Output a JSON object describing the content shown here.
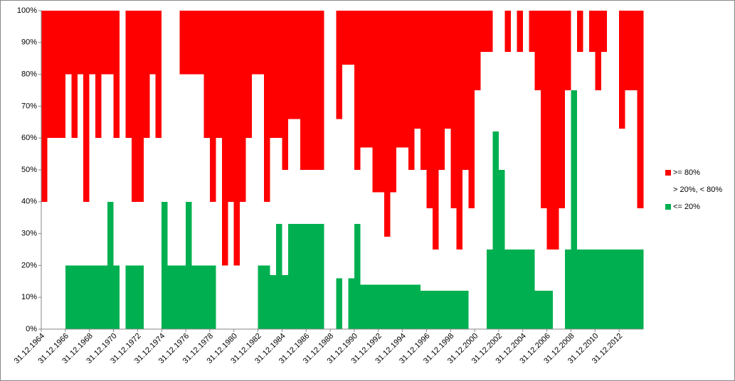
{
  "chart_data": {
    "type": "stacked_area_step",
    "x": [
      1964.0,
      1964.5,
      1965.0,
      1965.5,
      1966.0,
      1966.5,
      1967.0,
      1967.5,
      1968.0,
      1968.5,
      1969.0,
      1969.5,
      1970.0,
      1970.5,
      1971.0,
      1971.5,
      1972.0,
      1972.5,
      1973.0,
      1973.5,
      1974.0,
      1974.5,
      1975.0,
      1975.5,
      1976.0,
      1976.5,
      1977.0,
      1977.5,
      1978.0,
      1978.5,
      1979.0,
      1979.5,
      1980.0,
      1980.5,
      1981.0,
      1981.5,
      1982.0,
      1982.5,
      1983.0,
      1983.5,
      1984.0,
      1984.5,
      1985.0,
      1985.5,
      1986.0,
      1986.5,
      1987.0,
      1987.5,
      1988.0,
      1988.5,
      1989.0,
      1989.5,
      1990.0,
      1990.5,
      1991.0,
      1991.5,
      1992.0,
      1992.5,
      1993.0,
      1993.5,
      1994.0,
      1994.5,
      1995.0,
      1995.5,
      1996.0,
      1996.5,
      1997.0,
      1997.5,
      1998.0,
      1998.5,
      1999.0,
      1999.5,
      2000.0,
      2000.5,
      2001.0,
      2001.5,
      2002.0,
      2002.5,
      2003.0,
      2003.5,
      2004.0,
      2004.5,
      2005.0,
      2005.5,
      2006.0,
      2006.5,
      2007.0,
      2007.5,
      2008.0,
      2008.5,
      2009.0,
      2009.5,
      2010.0,
      2010.5,
      2011.0,
      2011.5,
      2012.0,
      2012.5,
      2013.0,
      2013.5
    ],
    "series": [
      {
        "name": ">= 80%",
        "color": "#ff0000",
        "values": [
          60,
          40,
          40,
          40,
          20,
          40,
          20,
          60,
          20,
          40,
          20,
          20,
          40,
          0,
          40,
          60,
          60,
          40,
          20,
          40,
          0,
          0,
          0,
          20,
          20,
          20,
          20,
          40,
          60,
          40,
          80,
          60,
          80,
          60,
          40,
          20,
          20,
          60,
          40,
          40,
          50,
          34,
          34,
          50,
          50,
          50,
          50,
          0,
          0,
          34,
          17,
          17,
          50,
          43,
          43,
          57,
          57,
          71,
          57,
          43,
          43,
          50,
          37,
          50,
          62,
          75,
          50,
          37,
          62,
          75,
          50,
          62,
          25,
          13,
          13,
          0,
          0,
          13,
          0,
          13,
          0,
          13,
          25,
          62,
          75,
          75,
          62,
          25,
          0,
          13,
          0,
          13,
          25,
          13,
          0,
          0,
          37,
          25,
          25,
          62
        ]
      },
      {
        "name": " > 20%, < 80%",
        "color": "#ffffff",
        "values": [
          40,
          60,
          60,
          60,
          60,
          40,
          60,
          20,
          60,
          40,
          60,
          40,
          40,
          100,
          40,
          20,
          20,
          60,
          80,
          60,
          60,
          80,
          80,
          60,
          40,
          60,
          60,
          40,
          20,
          60,
          20,
          40,
          20,
          40,
          60,
          80,
          60,
          20,
          43,
          27,
          33,
          33,
          33,
          17,
          17,
          17,
          17,
          100,
          100,
          50,
          83,
          67,
          17,
          43,
          43,
          29,
          29,
          15,
          29,
          43,
          43,
          36,
          49,
          38,
          26,
          13,
          38,
          51,
          26,
          13,
          38,
          38,
          75,
          87,
          62,
          38,
          50,
          62,
          75,
          62,
          75,
          62,
          63,
          26,
          13,
          25,
          38,
          50,
          25,
          62,
          75,
          62,
          50,
          62,
          75,
          75,
          38,
          50,
          50,
          13
        ]
      },
      {
        "name": "<= 20%",
        "color": "#00b050",
        "values": [
          0,
          0,
          0,
          0,
          20,
          20,
          20,
          20,
          20,
          20,
          20,
          40,
          20,
          0,
          20,
          20,
          20,
          0,
          0,
          0,
          40,
          20,
          20,
          20,
          40,
          20,
          20,
          20,
          20,
          0,
          0,
          0,
          0,
          0,
          0,
          0,
          20,
          20,
          17,
          33,
          17,
          33,
          33,
          33,
          33,
          33,
          33,
          0,
          0,
          16,
          0,
          16,
          33,
          14,
          14,
          14,
          14,
          14,
          14,
          14,
          14,
          14,
          14,
          12,
          12,
          12,
          12,
          12,
          12,
          12,
          12,
          0,
          0,
          0,
          25,
          62,
          50,
          25,
          25,
          25,
          25,
          25,
          12,
          12,
          12,
          0,
          0,
          25,
          75,
          25,
          25,
          25,
          25,
          25,
          25,
          25,
          25,
          25,
          25,
          25
        ]
      }
    ],
    "xlim": [
      1964,
      2014
    ],
    "xticks": [
      {
        "value": 1964,
        "label": "31.12.1964"
      },
      {
        "value": 1966,
        "label": "31.12.1966"
      },
      {
        "value": 1968,
        "label": "31.12.1968"
      },
      {
        "value": 1970,
        "label": "31.12.1970"
      },
      {
        "value": 1972,
        "label": "31.12.1972"
      },
      {
        "value": 1974,
        "label": "31.12.1974"
      },
      {
        "value": 1976,
        "label": "31.12.1976"
      },
      {
        "value": 1978,
        "label": "31.12.1978"
      },
      {
        "value": 1980,
        "label": "31.12.1980"
      },
      {
        "value": 1982,
        "label": "31.12.1982"
      },
      {
        "value": 1984,
        "label": "31.12.1984"
      },
      {
        "value": 1986,
        "label": "31.12.1986"
      },
      {
        "value": 1988,
        "label": "31.12.1988"
      },
      {
        "value": 1990,
        "label": "31.12.1990"
      },
      {
        "value": 1992,
        "label": "31.12.1992"
      },
      {
        "value": 1994,
        "label": "31.12.1994"
      },
      {
        "value": 1996,
        "label": "31.12.1996"
      },
      {
        "value": 1998,
        "label": "31.12.1998"
      },
      {
        "value": 2000,
        "label": "31.12.2000"
      },
      {
        "value": 2002,
        "label": "31.12.2002"
      },
      {
        "value": 2004,
        "label": "31.12.2004"
      },
      {
        "value": 2006,
        "label": "31.12.2006"
      },
      {
        "value": 2008,
        "label": "31.12.2008"
      },
      {
        "value": 2010,
        "label": "31.12.2010"
      },
      {
        "value": 2012,
        "label": "31.12.2012"
      }
    ],
    "ylim": [
      0,
      100
    ],
    "yticks": [
      {
        "value": 0,
        "label": "0%"
      },
      {
        "value": 10,
        "label": "10%"
      },
      {
        "value": 20,
        "label": "20%"
      },
      {
        "value": 30,
        "label": "30%"
      },
      {
        "value": 40,
        "label": "40%"
      },
      {
        "value": 50,
        "label": "50%"
      },
      {
        "value": 60,
        "label": "60%"
      },
      {
        "value": 70,
        "label": "70%"
      },
      {
        "value": 80,
        "label": "80%"
      },
      {
        "value": 90,
        "label": "90%"
      },
      {
        "value": 100,
        "label": "100%"
      }
    ],
    "legend": "right"
  }
}
